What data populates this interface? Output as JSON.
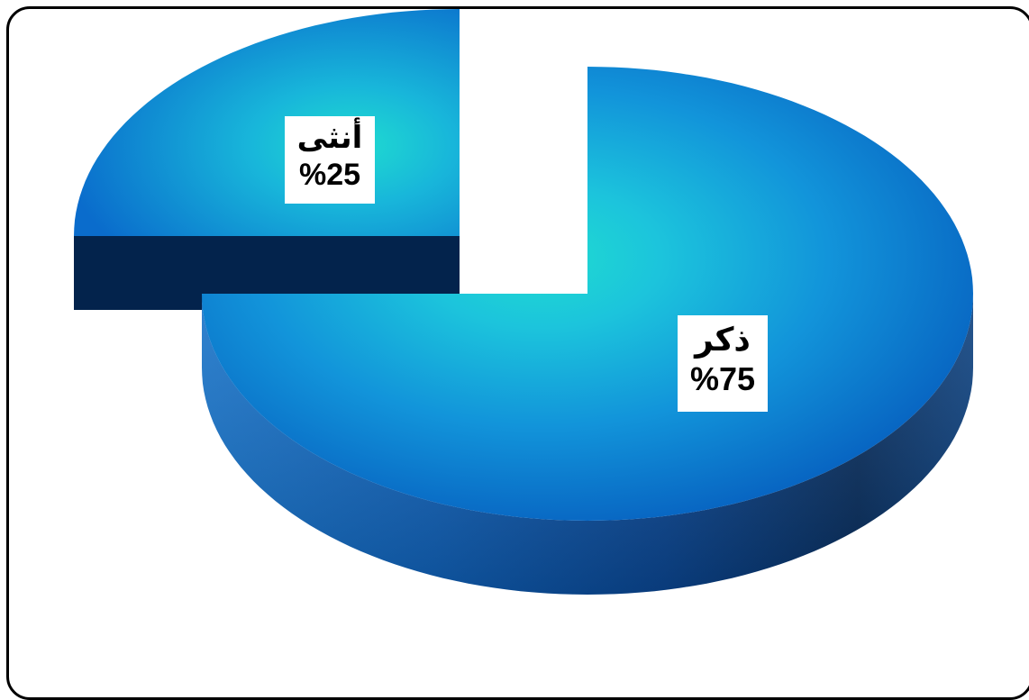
{
  "chart_data": {
    "type": "pie",
    "style": "3d-exploded",
    "slices": [
      {
        "label": "ذكر",
        "value": 75,
        "value_label": "%75"
      },
      {
        "label": "أنثى",
        "value": 25,
        "value_label": "%25"
      }
    ],
    "colors": {
      "top_highlight": "#1fd6d6",
      "top_mid": "#13a8d8",
      "top_edge": "#0066c4",
      "side_light": "#1470c8",
      "side_dark": "#04234d",
      "cut_face": "#0a2a5a"
    },
    "grid": false,
    "legend": "none"
  }
}
